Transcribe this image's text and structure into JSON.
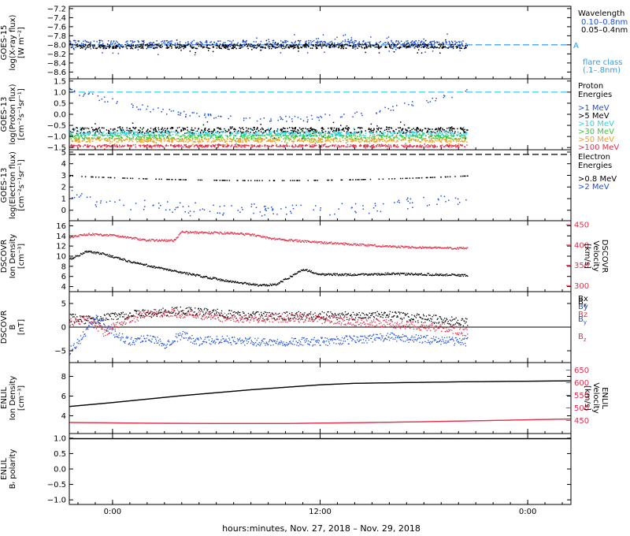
{
  "colors": {
    "black": "#000000",
    "blue": "#1f4fd6",
    "red": "#e0304a",
    "cyan": "#29d6e8",
    "green": "#33cc33",
    "orange": "#f0a020",
    "dashed_blue": "#2f9ce8",
    "proton_threshold": "#33c8f0"
  },
  "x_axis": {
    "label": "hours:minutes, Nov. 27, 2018 – Nov. 29, 2018",
    "ticks": [
      {
        "hour": 0,
        "label": "0:00"
      },
      {
        "hour": 12,
        "label": "12:00"
      },
      {
        "hour": 24,
        "label": "0:00"
      }
    ],
    "range_hours": [
      -2.5,
      26.5
    ],
    "data_end_hour": 20.5,
    "minor_step_hours": 1
  },
  "chart_data": [
    {
      "id": "xray",
      "type": "scatter",
      "ylabel": [
        "GOES-15",
        "log(X-ray flux)",
        "[W m⁻²]"
      ],
      "ylim": [
        -8.75,
        -7.15
      ],
      "yticks": [
        -7.2,
        -7.4,
        -7.6,
        -7.8,
        -8.0,
        -8.2,
        -8.4,
        -8.6
      ],
      "ytick_labels": [
        "−7.2",
        "−7.4",
        "−7.6",
        "−7.8",
        "−8.0",
        "−8.2",
        "−8.4",
        "−8.6"
      ],
      "legend_title": [
        "Wavelength"
      ],
      "series": [
        {
          "name": "0.10–0.8nm",
          "color": "blue",
          "level": -7.97,
          "spread": 0.08
        },
        {
          "name": "0.05–0.4nm",
          "color": "black",
          "level": -8.02,
          "spread": 0.05
        }
      ],
      "threshold": {
        "value": -8.0,
        "color": "dashed_blue",
        "label": "A"
      },
      "extra_legend": [
        "flare class",
        "(.1–.8nm)"
      ]
    },
    {
      "id": "proton",
      "type": "scatter",
      "ylabel": [
        "GOES-13",
        "log(Proton flux)",
        "[cm⁻²s⁻¹sr⁻¹]"
      ],
      "ylim": [
        -1.6,
        1.6
      ],
      "yticks": [
        1.5,
        1.0,
        0.5,
        0.0,
        -0.5,
        -1.0,
        -1.5
      ],
      "ytick_labels": [
        "1.5",
        "1.0",
        "0.5",
        "0.0",
        "−0.5",
        "−1.0",
        "−1.5"
      ],
      "legend_title": [
        "Proton",
        "Energies"
      ],
      "series": [
        {
          "name": ">1 MeV",
          "color": "blue",
          "shape": "dip",
          "high": 1.1,
          "low": -0.2
        },
        {
          "name": ">5 MeV",
          "color": "black",
          "level": -0.7,
          "spread": 0.14
        },
        {
          "name": ">10 MeV",
          "color": "cyan",
          "level": -0.85,
          "spread": 0.1
        },
        {
          "name": ">30 MeV",
          "color": "green",
          "level": -1.0,
          "spread": 0.1
        },
        {
          "name": ">50 MeV",
          "color": "orange",
          "level": -1.15,
          "spread": 0.08
        },
        {
          "name": ">100 MeV",
          "color": "red",
          "level": -1.4,
          "spread": 0.05
        }
      ],
      "threshold": {
        "value": 1.0,
        "color": "proton_threshold"
      }
    },
    {
      "id": "electron",
      "type": "scatter",
      "ylabel": [
        "GOES-13",
        "log(Electron flux)",
        "[cm⁻²s⁻¹sr⁻¹]"
      ],
      "ylim": [
        -0.9,
        5.2
      ],
      "yticks": [
        5,
        4,
        3,
        2,
        1,
        0
      ],
      "ytick_labels": [
        "5",
        "4",
        "3",
        "2",
        "1",
        "0"
      ],
      "legend_title": [
        "Electron",
        "Energies"
      ],
      "series": [
        {
          "name": ">0.8 MeV",
          "color": "black",
          "shape": "sag",
          "high": 3.0,
          "low": 2.6
        },
        {
          "name": ">2 MeV",
          "color": "blue",
          "shape": "dip",
          "high": 1.2,
          "low": 0.0
        }
      ],
      "threshold": {
        "value": 4.8,
        "color": "black"
      }
    },
    {
      "id": "dscovr_density",
      "type": "line",
      "ylabel": [
        "DSCOVR",
        "Ion Density",
        "[cm⁻³]"
      ],
      "ylim": [
        3,
        17
      ],
      "yticks": [
        16,
        14,
        12,
        10,
        8,
        6,
        4
      ],
      "ytick_labels": [
        "16",
        "14",
        "12",
        "10",
        "8",
        "6",
        "4"
      ],
      "right_axis": {
        "label": [
          "DSCOVR",
          "Velocity",
          "[km/s]"
        ],
        "ylim": [
          285,
          460
        ],
        "yticks": [
          450,
          400,
          350,
          300
        ],
        "ytick_labels": [
          "450",
          "400",
          "350",
          "300"
        ]
      },
      "series": [
        {
          "name": "Ion Density",
          "color": "black",
          "axis": "left",
          "x": [
            -2.5,
            -1.5,
            -0.5,
            1,
            3,
            5,
            7,
            8.5,
            9.5,
            10.5,
            11,
            12,
            14,
            16,
            18,
            20.5
          ],
          "y": [
            9.5,
            11,
            10.5,
            9,
            7.5,
            6.2,
            5,
            4.3,
            4.6,
            6.5,
            7.5,
            6.5,
            6.4,
            6.6,
            6.5,
            6.3
          ]
        },
        {
          "name": "Velocity",
          "color": "red",
          "axis": "right",
          "x": [
            -2.5,
            -1.5,
            0,
            2,
            3.5,
            4,
            5,
            7,
            8,
            9,
            11,
            13,
            15,
            17,
            19,
            20.5
          ],
          "y": [
            420,
            428,
            425,
            413,
            412,
            433,
            432,
            430,
            427,
            418,
            410,
            405,
            400,
            396,
            394,
            393
          ]
        }
      ]
    },
    {
      "id": "dscovr_b",
      "type": "line",
      "ylabel": [
        "DSCOVR",
        "B",
        "[nT]"
      ],
      "ylim": [
        -7.5,
        7.5
      ],
      "yticks": [
        5,
        0,
        -5
      ],
      "ytick_labels": [
        "5",
        "0",
        "−5"
      ],
      "legend_title": [],
      "legend_items": [
        {
          "name": "B",
          "sub": "x",
          "color": "black"
        },
        {
          "name": "B",
          "sub": "y",
          "color": "blue"
        },
        {
          "name": "B",
          "sub": "z",
          "color": "red"
        }
      ],
      "zero_line": true,
      "series": [
        {
          "name": "Bx",
          "color": "black",
          "x": [
            -2.5,
            -1,
            0,
            2,
            4,
            6,
            8,
            10,
            12,
            14,
            16,
            18,
            20.5
          ],
          "y": [
            2,
            1.5,
            2.5,
            3,
            3.5,
            3,
            2.5,
            2.5,
            2.5,
            2.5,
            2.5,
            2,
            1
          ]
        },
        {
          "name": "By",
          "color": "blue",
          "x": [
            -2.5,
            -2,
            -1,
            0,
            1,
            2,
            3,
            4,
            5,
            6,
            8,
            10,
            12,
            14,
            16,
            18,
            20.5
          ],
          "y": [
            -5,
            -3,
            2,
            -1,
            -3,
            -2,
            -3.5,
            -1.5,
            -3,
            -2.5,
            -3,
            -3,
            -3,
            -2.5,
            -2,
            -2.5,
            -3
          ]
        },
        {
          "name": "Bz",
          "color": "red",
          "x": [
            -2.5,
            -1.5,
            -0.5,
            0.5,
            2,
            3.5,
            5,
            7,
            9,
            11,
            13,
            15,
            17,
            19,
            20.5
          ],
          "y": [
            1,
            2,
            -1,
            1,
            3,
            3,
            2.5,
            2,
            2,
            2,
            1.5,
            1,
            0.5,
            0,
            -1
          ]
        }
      ]
    },
    {
      "id": "enlil_density",
      "type": "line",
      "ylabel": [
        "ENLIL",
        "Ion Density",
        "[cm⁻³]"
      ],
      "ylim": [
        2.2,
        9.4
      ],
      "yticks": [
        8,
        6,
        4
      ],
      "ytick_labels": [
        "8",
        "6",
        "4"
      ],
      "right_axis": {
        "label": [
          "ENLIL",
          "Velocity",
          "[km/s]"
        ],
        "ylim": [
          398,
          680
        ],
        "yticks": [
          650,
          600,
          550,
          500,
          450
        ],
        "ytick_labels": [
          "650",
          "600",
          "550",
          "500",
          "450"
        ]
      },
      "series": [
        {
          "name": "Ion Density",
          "color": "black",
          "axis": "left",
          "x": [
            -2.5,
            0,
            4,
            8,
            12,
            14,
            16,
            20,
            26.5
          ],
          "y": [
            5.0,
            5.4,
            6.1,
            6.7,
            7.2,
            7.35,
            7.4,
            7.5,
            7.6
          ]
        },
        {
          "name": "Velocity",
          "color": "red",
          "axis": "right",
          "x": [
            -2.5,
            2,
            6,
            10,
            14,
            18,
            22,
            26.5
          ],
          "y": [
            444,
            441,
            440,
            440,
            443,
            447,
            452,
            458
          ]
        }
      ]
    },
    {
      "id": "enlil_polarity",
      "type": "line",
      "ylabel": [
        "ENLIL",
        "Bᵣ polarity"
      ],
      "ylim": [
        -1.15,
        1.15
      ],
      "yticks": [
        1.0,
        0.5,
        0.0,
        -0.5,
        -1.0
      ],
      "ytick_labels": [
        "1.0",
        "0.5",
        "0.0",
        "−0.5",
        "−1.0"
      ],
      "series": [
        {
          "name": "polarity",
          "color": "black",
          "x": [
            -2.5,
            26.5
          ],
          "y": [
            1.0,
            1.0
          ]
        }
      ]
    }
  ]
}
